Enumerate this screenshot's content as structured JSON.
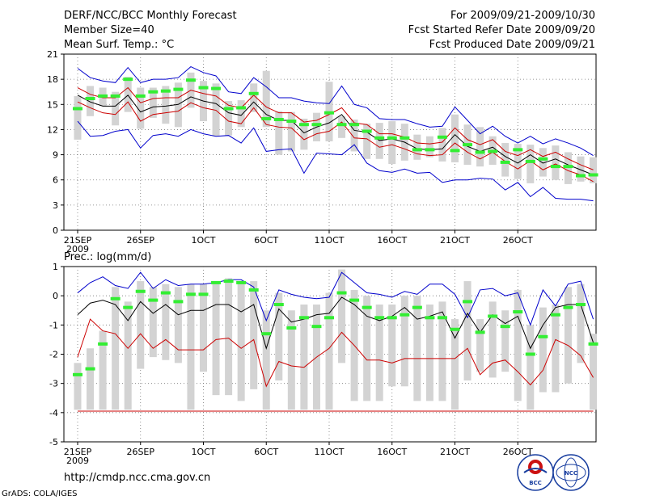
{
  "header": {
    "title": "DERF/NCC/BCC Monthly Forecast",
    "member_size": "Member Size=40",
    "forecast_period": "For 2009/09/21-2009/10/30",
    "start_date": "Fcst Started Refer Date 2009/09/20",
    "produced_date": "Fcst Produced Date 2009/09/21"
  },
  "footer": {
    "url": "http://cmdp.ncc.cma.gov.cn",
    "credit": "GrADS: COLA/IGES",
    "logo_bcc": "BCC",
    "logo_ncc": "NCC"
  },
  "colors": {
    "box": "#d3d3d3",
    "median": "#33ee33",
    "max": "#0000cc",
    "min": "#0000cc",
    "mean": "#000000",
    "spread": "#cc0000"
  },
  "chart_data": [
    {
      "type": "line",
      "title": "Mean Surf. Temp.: °C",
      "ylim": [
        0,
        21
      ],
      "yticks": [
        "0",
        "3",
        "6",
        "9",
        "12",
        "15",
        "18",
        "21"
      ],
      "xlabel_first": "21SEP",
      "year_label": "2009",
      "xticks": [
        {
          "label": "21SEP",
          "day": 0
        },
        {
          "label": "26SEP",
          "day": 5
        },
        {
          "label": "1OCT",
          "day": 10
        },
        {
          "label": "6OCT",
          "day": 15
        },
        {
          "label": "11OCT",
          "day": 20
        },
        {
          "label": "16OCT",
          "day": 25
        },
        {
          "label": "21OCT",
          "day": 30
        },
        {
          "label": "26OCT",
          "day": 35
        }
      ],
      "series": [
        {
          "name": "max",
          "values": [
            19.3,
            18.2,
            17.8,
            17.6,
            19.4,
            17.6,
            18.0,
            18.0,
            18.2,
            19.5,
            18.8,
            18.4,
            16.5,
            16.3,
            18.2,
            17.1,
            15.8,
            15.8,
            15.4,
            15.2,
            15.1,
            17.2,
            15.0,
            14.6,
            13.3,
            13.2,
            13.2,
            12.7,
            12.3,
            12.4,
            14.7,
            13.1,
            11.5,
            12.4,
            11.2,
            10.4,
            11.2,
            10.3,
            10.9,
            10.4,
            9.8,
            8.9
          ]
        },
        {
          "name": "spread_upper",
          "values": [
            17.0,
            16.2,
            15.8,
            15.8,
            17.0,
            15.2,
            15.7,
            15.8,
            15.8,
            16.7,
            16.3,
            16.0,
            14.9,
            14.6,
            16.1,
            14.7,
            14.0,
            14.0,
            12.9,
            13.1,
            13.8,
            14.6,
            12.8,
            12.6,
            11.5,
            11.5,
            11.1,
            10.4,
            10.3,
            10.5,
            12.2,
            10.8,
            10.2,
            10.8,
            9.4,
            8.9,
            9.6,
            8.8,
            9.3,
            8.5,
            7.8,
            7.2
          ]
        },
        {
          "name": "mean",
          "values": [
            16.1,
            15.3,
            14.8,
            14.8,
            16.1,
            14.1,
            14.7,
            14.8,
            15.0,
            15.9,
            15.4,
            15.1,
            14.0,
            13.7,
            15.3,
            13.8,
            13.1,
            13.1,
            11.6,
            12.3,
            12.8,
            13.8,
            11.9,
            11.7,
            10.7,
            10.9,
            10.5,
            9.7,
            9.6,
            9.7,
            11.4,
            10.0,
            9.4,
            9.9,
            8.8,
            8.0,
            9.0,
            8.0,
            8.5,
            7.8,
            7.2,
            6.6
          ]
        },
        {
          "name": "spread_lower",
          "values": [
            15.3,
            14.6,
            14.0,
            13.8,
            15.3,
            13.0,
            13.8,
            14.0,
            14.2,
            15.2,
            14.6,
            14.3,
            13.0,
            12.7,
            14.6,
            12.6,
            12.3,
            12.2,
            10.8,
            11.5,
            11.8,
            12.9,
            11.0,
            10.9,
            9.9,
            10.2,
            9.7,
            9.1,
            8.9,
            9.0,
            10.4,
            9.3,
            8.5,
            9.3,
            8.2,
            7.3,
            8.3,
            7.2,
            7.9,
            7.1,
            6.6,
            5.8
          ]
        },
        {
          "name": "min",
          "values": [
            13.0,
            11.2,
            11.3,
            11.8,
            12.0,
            9.8,
            11.3,
            11.5,
            11.2,
            12.0,
            11.5,
            11.2,
            11.3,
            10.4,
            12.2,
            9.4,
            9.6,
            9.7,
            6.8,
            9.2,
            9.1,
            9.0,
            10.2,
            8.0,
            7.1,
            6.9,
            7.3,
            6.8,
            6.9,
            5.7,
            6.0,
            6.0,
            6.2,
            6.1,
            4.8,
            5.7,
            4.0,
            5.1,
            3.8,
            3.7,
            3.7,
            3.5
          ]
        },
        {
          "name": "median",
          "values": [
            14.5,
            15.7,
            16.0,
            16.0,
            18.0,
            16.0,
            16.5,
            16.6,
            16.8,
            17.9,
            17.0,
            16.9,
            14.5,
            14.6,
            16.3,
            13.3,
            13.2,
            13.0,
            12.6,
            12.6,
            14.0,
            12.6,
            12.6,
            11.8,
            11.0,
            11.0,
            11.0,
            9.6,
            9.6,
            11.1,
            9.5,
            10.2,
            9.3,
            9.4,
            8.1,
            9.6,
            8.2,
            8.5,
            7.6,
            7.6,
            6.5,
            6.6
          ]
        },
        {
          "name": "box_top",
          "values": [
            16.0,
            17.2,
            17.0,
            16.5,
            18.3,
            17.0,
            17.0,
            17.2,
            17.6,
            18.8,
            17.8,
            17.5,
            15.4,
            15.5,
            17.5,
            19.0,
            14.2,
            14.1,
            13.3,
            14.0,
            17.7,
            13.6,
            13.2,
            12.7,
            12.8,
            13.0,
            12.7,
            11.4,
            11.2,
            12.2,
            13.8,
            12.6,
            12.3,
            11.2,
            10.4,
            10.3,
            10.2,
            9.8,
            10.1,
            9.3,
            8.8,
            8.7
          ]
        },
        {
          "name": "box_bottom",
          "values": [
            10.8,
            13.6,
            14.8,
            12.5,
            14.1,
            12.1,
            13.4,
            12.7,
            12.3,
            14.6,
            13.0,
            11.2,
            11.3,
            12.3,
            14.1,
            12.3,
            9.0,
            9.4,
            9.6,
            10.6,
            10.6,
            11.0,
            9.4,
            8.5,
            8.5,
            7.9,
            8.3,
            8.4,
            8.7,
            8.2,
            8.1,
            7.8,
            7.6,
            7.8,
            6.4,
            6.1,
            5.6,
            6.4,
            6.0,
            5.5,
            5.8,
            5.6
          ]
        }
      ]
    },
    {
      "type": "line",
      "title": "Prec.: log(mm/d)",
      "ylim": [
        -5,
        1
      ],
      "yticks": [
        "-5",
        "-4",
        "-3",
        "-2",
        "-1",
        "0",
        "1"
      ],
      "xlabel_first": "21SEP",
      "year_label": "2009",
      "xticks": [
        {
          "label": "21SEP",
          "day": 0
        },
        {
          "label": "26SEP",
          "day": 5
        },
        {
          "label": "1OCT",
          "day": 10
        },
        {
          "label": "6OCT",
          "day": 15
        },
        {
          "label": "11OCT",
          "day": 20
        },
        {
          "label": "16OCT",
          "day": 25
        },
        {
          "label": "21OCT",
          "day": 30
        },
        {
          "label": "26OCT",
          "day": 35
        }
      ],
      "series": [
        {
          "name": "max",
          "values": [
            0.1,
            0.45,
            0.65,
            0.35,
            0.25,
            0.8,
            0.25,
            0.55,
            0.35,
            0.4,
            0.4,
            0.45,
            0.55,
            0.55,
            0.3,
            -0.85,
            0.2,
            0.05,
            -0.05,
            -0.1,
            -0.05,
            0.8,
            0.45,
            0.1,
            0.05,
            -0.05,
            0.15,
            0.05,
            0.4,
            0.4,
            0.05,
            -0.75,
            0.2,
            0.25,
            0.0,
            0.1,
            -1.0,
            0.2,
            -0.35,
            0.4,
            0.5,
            -0.8
          ]
        },
        {
          "name": "mean",
          "values": [
            -0.65,
            -0.25,
            -0.15,
            -0.3,
            -0.85,
            -0.2,
            -0.6,
            -0.3,
            -0.65,
            -0.5,
            -0.5,
            -0.3,
            -0.3,
            -0.55,
            -0.3,
            -1.8,
            -0.45,
            -0.9,
            -0.8,
            -0.65,
            -0.6,
            -0.05,
            -0.3,
            -0.7,
            -0.85,
            -0.7,
            -0.4,
            -0.8,
            -0.7,
            -0.55,
            -1.45,
            -0.6,
            -1.25,
            -0.65,
            -0.95,
            -0.7,
            -1.8,
            -1.0,
            -0.4,
            -0.3,
            -0.3,
            -1.6
          ]
        },
        {
          "name": "spread_lower",
          "values": [
            -2.1,
            -0.8,
            -1.2,
            -1.3,
            -1.8,
            -1.3,
            -1.8,
            -1.5,
            -1.85,
            -1.85,
            -1.85,
            -1.5,
            -1.45,
            -1.8,
            -1.5,
            -3.1,
            -2.25,
            -2.4,
            -2.45,
            -2.1,
            -1.8,
            -1.25,
            -1.7,
            -2.2,
            -2.2,
            -2.3,
            -2.15,
            -2.15,
            -2.15,
            -2.15,
            -2.15,
            -1.8,
            -2.7,
            -2.3,
            -2.2,
            -2.6,
            -3.05,
            -2.55,
            -1.5,
            -1.7,
            -2.05,
            -2.8
          ]
        },
        {
          "name": "min",
          "values": [
            -3.95,
            -3.95,
            -3.95,
            -3.95,
            -3.95,
            -3.95,
            -3.95,
            -3.95,
            -3.95,
            -3.95,
            -3.95,
            -3.95,
            -3.95,
            -3.95,
            -3.95,
            -3.95,
            -3.95,
            -3.95,
            -3.95,
            -3.95,
            -3.95,
            -3.95,
            -3.95,
            -3.95,
            -3.95,
            -3.95,
            -3.95,
            -3.95,
            -3.95,
            -3.95,
            -3.95,
            -3.95,
            -3.95,
            -3.95,
            -3.95,
            -3.95,
            -3.95,
            -3.95,
            -3.95,
            -3.95,
            -3.95,
            -3.95
          ]
        },
        {
          "name": "median",
          "values": [
            -2.7,
            -2.5,
            -1.65,
            -0.1,
            -0.4,
            0.15,
            -0.15,
            0.1,
            -0.2,
            0.05,
            0.05,
            0.45,
            0.5,
            0.45,
            0.2,
            -1.3,
            -0.3,
            -1.1,
            -0.75,
            -1.05,
            -0.75,
            0.1,
            -0.15,
            -0.4,
            -0.75,
            -0.75,
            -0.65,
            -0.4,
            -0.75,
            -0.75,
            -1.15,
            -0.2,
            -1.25,
            -0.7,
            -1.05,
            -0.55,
            -2.0,
            -1.4,
            -0.65,
            -0.4,
            -0.3,
            -1.65
          ]
        },
        {
          "name": "box_top",
          "values": [
            -2.3,
            -1.8,
            -1.2,
            0.3,
            -0.2,
            0.5,
            0.3,
            0.4,
            0.3,
            0.4,
            0.4,
            0.5,
            0.6,
            0.5,
            0.5,
            -0.5,
            0.1,
            -0.5,
            -0.3,
            -0.3,
            0.1,
            0.9,
            0.2,
            0.0,
            -0.3,
            -0.3,
            0.0,
            0.0,
            -0.3,
            -0.2,
            -0.8,
            0.5,
            -0.8,
            -0.2,
            -0.5,
            0.2,
            -1.0,
            -0.4,
            -0.3,
            0.3,
            0.4,
            -1.3
          ]
        },
        {
          "name": "box_bottom",
          "values": [
            -3.9,
            -3.9,
            -3.9,
            -3.9,
            -3.9,
            -2.5,
            -2.1,
            -2.2,
            -2.3,
            -3.9,
            -2.6,
            -3.4,
            -3.4,
            -3.6,
            -3.2,
            -3.9,
            -2.9,
            -3.9,
            -3.9,
            -3.9,
            -3.9,
            -2.3,
            -3.6,
            -3.6,
            -3.6,
            -3.1,
            -3.1,
            -3.6,
            -3.6,
            -3.6,
            -3.9,
            -2.9,
            -2.6,
            -2.8,
            -2.6,
            -3.6,
            -3.9,
            -3.3,
            -3.3,
            -3.0,
            -2.3,
            -3.9
          ]
        }
      ]
    }
  ]
}
